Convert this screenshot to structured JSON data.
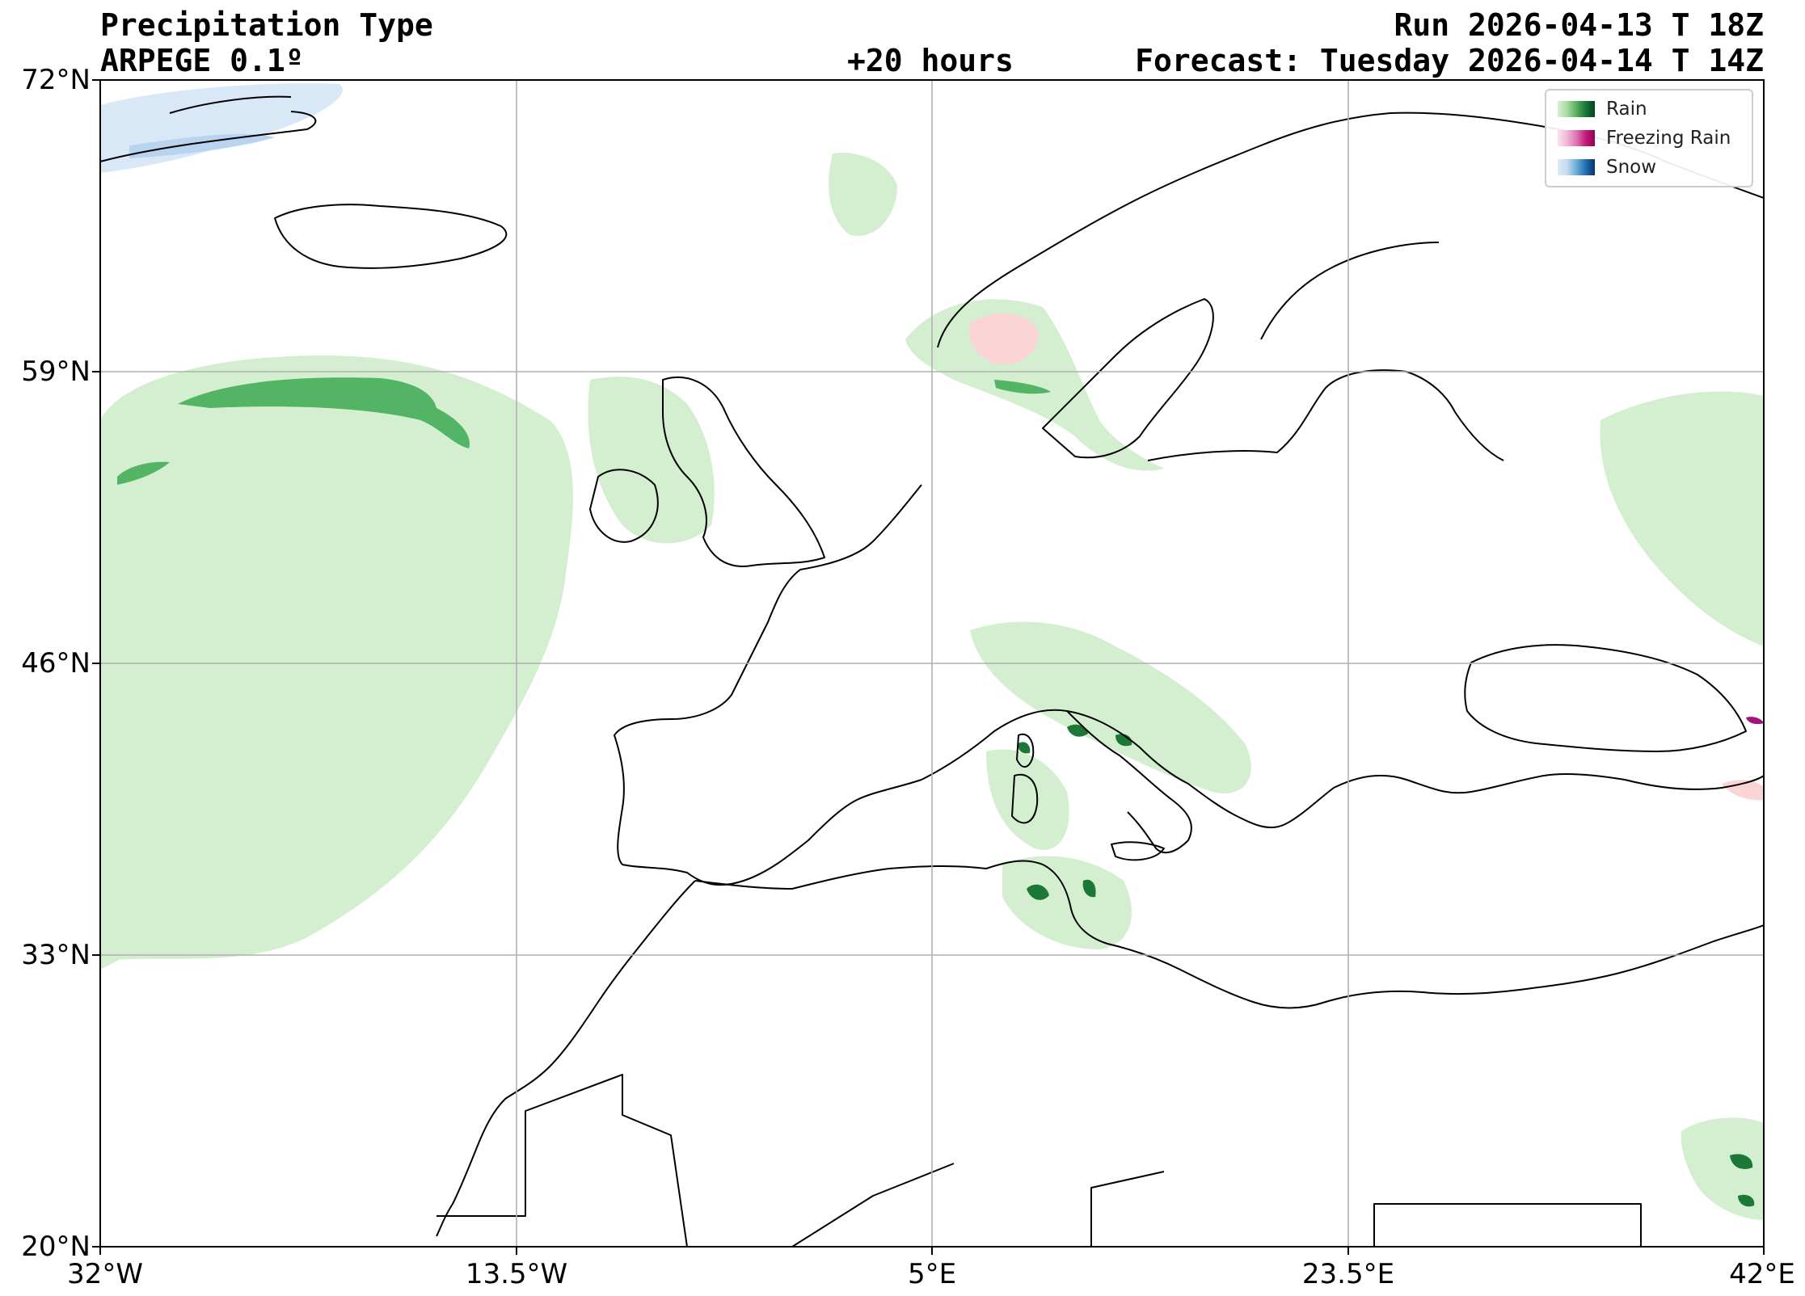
{
  "header": {
    "title": "Precipitation Type",
    "model": "ARPEGE 0.1º",
    "run": "Run 2026-04-13 T 18Z",
    "lead": "+20 hours",
    "forecast": "Forecast: Tuesday 2026-04-14 T 14Z"
  },
  "axes": {
    "lat_labels": [
      "72°N",
      "59°N",
      "46°N",
      "33°N",
      "20°N"
    ],
    "lon_labels": [
      "32°W",
      "13.5°W",
      "5°E",
      "23.5°E",
      "42°E"
    ],
    "lat_range": [
      20,
      72
    ],
    "lon_range": [
      -32,
      42
    ],
    "grid": true
  },
  "legend": {
    "placement": "top-right",
    "items": [
      {
        "label": "Rain",
        "colors": [
          "#d9f0d3",
          "#a6dba0",
          "#5aae61",
          "#1b7837",
          "#00441b"
        ]
      },
      {
        "label": "Freezing Rain",
        "colors": [
          "#fde0ef",
          "#f1b6da",
          "#de77ae",
          "#c51b7d",
          "#8e0152"
        ]
      },
      {
        "label": "Snow",
        "colors": [
          "#deebf7",
          "#c6dbef",
          "#6baed6",
          "#2171b5",
          "#08306b"
        ]
      }
    ]
  },
  "colors": {
    "rain_light": "#d4efd0",
    "rain_mid": "#5cb86a",
    "rain_dark": "#1b7837",
    "freezing_light": "#fbd5d5",
    "freezing_dark": "#a0157a",
    "snow_light": "#d8e8f6",
    "coastline": "#000000",
    "gridline": "#b0b0b0"
  }
}
